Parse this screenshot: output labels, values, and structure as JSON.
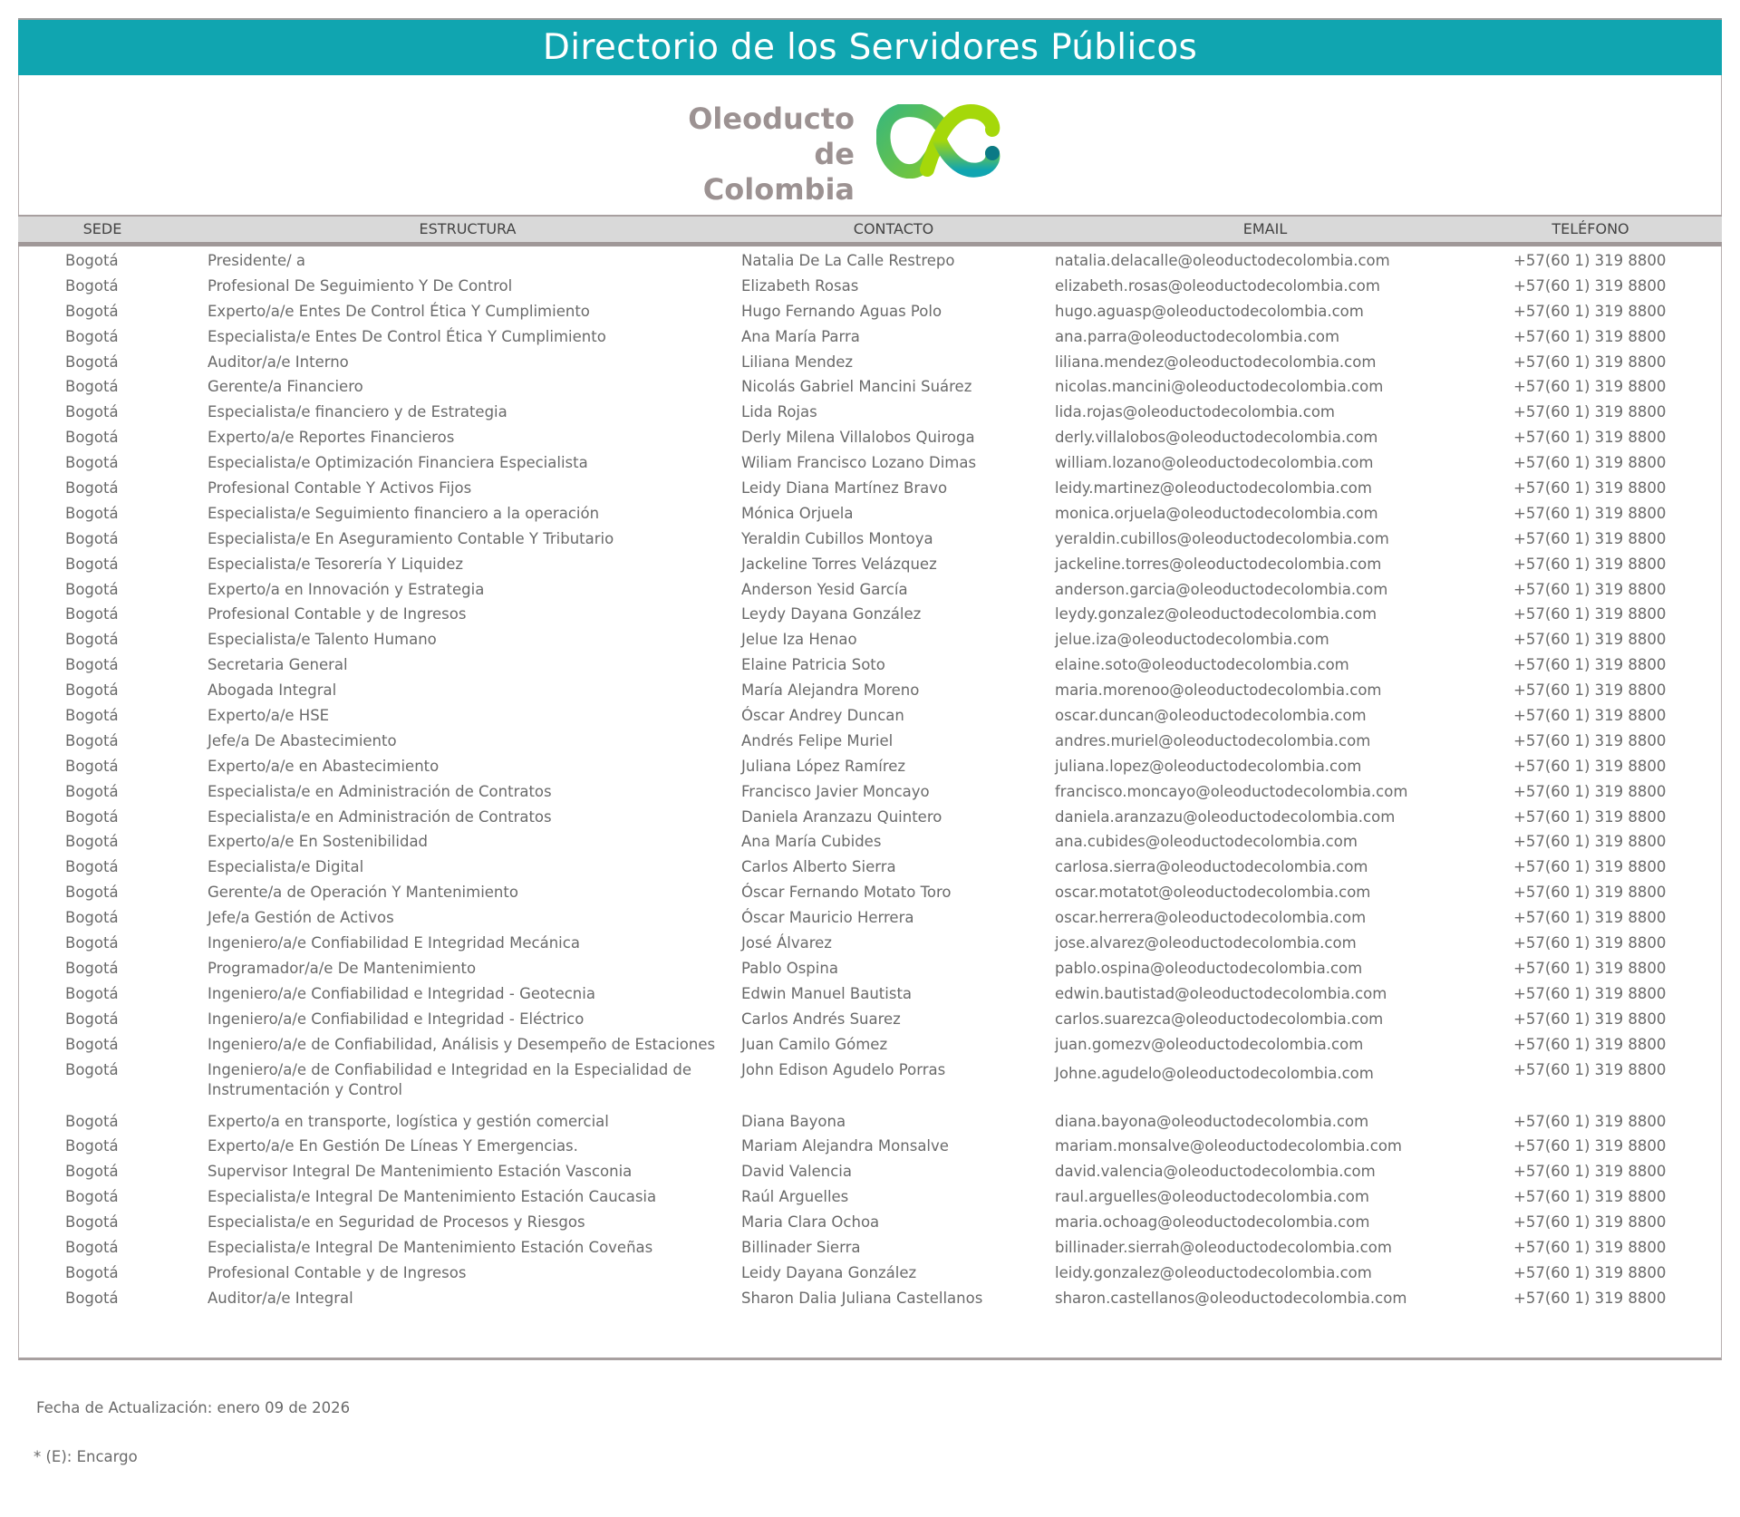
{
  "title": "Directorio de los Servidores Públicos",
  "logo": {
    "line1": "Oleoducto",
    "line2": "de Colombia",
    "colors": [
      "#3cb878",
      "#a5d80a",
      "#10a5b0",
      "#0b7a86"
    ]
  },
  "colors": {
    "title_bar": "#10a5b0",
    "header_bg": "#d9d9d9",
    "text": "#6a6a6a"
  },
  "headers": {
    "sede": "SEDE",
    "estructura": "ESTRUCTURA",
    "contacto": "CONTACTO",
    "email": "EMAIL",
    "telefono": "TELÉFONO"
  },
  "rows": [
    {
      "sede": "Bogotá",
      "estructura": "Presidente/ a",
      "contacto": "Natalia De La Calle Restrepo",
      "email": "natalia.delacalle@oleoductodecolombia.com",
      "telefono": "+57(60 1) 319 8800"
    },
    {
      "sede": "Bogotá",
      "estructura": "Profesional De Seguimiento Y De Control",
      "contacto": "Elizabeth Rosas",
      "email": "elizabeth.rosas@oleoductodecolombia.com",
      "telefono": "+57(60 1) 319 8800"
    },
    {
      "sede": "Bogotá",
      "estructura": "Experto/a/e  Entes De Control Ética Y Cumplimiento",
      "contacto": "Hugo Fernando Aguas Polo",
      "email": "hugo.aguasp@oleoductodecolombia.com",
      "telefono": "+57(60 1) 319 8800"
    },
    {
      "sede": "Bogotá",
      "estructura": "Especialista/e Entes De Control Ética Y Cumplimiento",
      "contacto": "Ana María Parra",
      "email": "ana.parra@oleoductodecolombia.com",
      "telefono": "+57(60 1) 319 8800"
    },
    {
      "sede": "Bogotá",
      "estructura": "Auditor/a/e Interno",
      "contacto": "Liliana Mendez",
      "email": "liliana.mendez@oleoductodecolombia.com",
      "telefono": "+57(60 1) 319 8800"
    },
    {
      "sede": "Bogotá",
      "estructura": "Gerente/a Financiero",
      "contacto": "Nicolás Gabriel Mancini Suárez",
      "email": "nicolas.mancini@oleoductodecolombia.com",
      "telefono": "+57(60 1) 319 8800"
    },
    {
      "sede": "Bogotá",
      "estructura": "Especialista/e financiero y de Estrategia",
      "contacto": "Lida Rojas",
      "email": "lida.rojas@oleoductodecolombia.com",
      "telefono": "+57(60 1) 319 8800"
    },
    {
      "sede": "Bogotá",
      "estructura": "Experto/a/e Reportes Financieros",
      "contacto": "Derly Milena Villalobos Quiroga",
      "email": "derly.villalobos@oleoductodecolombia.com",
      "telefono": "+57(60 1) 319 8800"
    },
    {
      "sede": "Bogotá",
      "estructura": "Especialista/e Optimización Financiera Especialista",
      "contacto": "Wiliam Francisco Lozano Dimas",
      "email": "william.lozano@oleoductodecolombia.com",
      "telefono": "+57(60 1) 319 8800"
    },
    {
      "sede": "Bogotá",
      "estructura": "Profesional Contable Y Activos Fijos",
      "contacto": "Leidy Diana Martínez Bravo",
      "email": "leidy.martinez@oleoductodecolombia.com",
      "telefono": "+57(60 1) 319 8800"
    },
    {
      "sede": "Bogotá",
      "estructura": "Especialista/e Seguimiento financiero a la operación",
      "contacto": "Mónica Orjuela",
      "email": "monica.orjuela@oleoductodecolombia.com",
      "telefono": "+57(60 1) 319 8800"
    },
    {
      "sede": "Bogotá",
      "estructura": "Especialista/e  En Aseguramiento Contable Y Tributario",
      "contacto": "Yeraldin Cubillos Montoya",
      "email": "yeraldin.cubillos@oleoductodecolombia.com",
      "telefono": "+57(60 1) 319 8800"
    },
    {
      "sede": "Bogotá",
      "estructura": "Especialista/e Tesorería Y Liquidez",
      "contacto": "Jackeline Torres Velázquez",
      "email": "jackeline.torres@oleoductodecolombia.com",
      "telefono": "+57(60 1) 319 8800"
    },
    {
      "sede": "Bogotá",
      "estructura": "Experto/a en Innovación y Estrategia",
      "contacto": "Anderson Yesid García",
      "email": "anderson.garcia@oleoductodecolombia.com",
      "telefono": "+57(60 1) 319 8800"
    },
    {
      "sede": "Bogotá",
      "estructura": "Profesional Contable y de Ingresos",
      "contacto": "Leydy Dayana González",
      "email": "leydy.gonzalez@oleoductodecolombia.com",
      "telefono": "+57(60 1) 319 8800"
    },
    {
      "sede": "Bogotá",
      "estructura": "Especialista/e Talento Humano",
      "contacto": "Jelue Iza Henao",
      "email": "jelue.iza@oleoductodecolombia.com",
      "telefono": "+57(60 1) 319 8800"
    },
    {
      "sede": "Bogotá",
      "estructura": "Secretaria General",
      "contacto": "Elaine Patricia Soto",
      "email": "elaine.soto@oleoductodecolombia.com",
      "telefono": "+57(60 1) 319 8800"
    },
    {
      "sede": "Bogotá",
      "estructura": "Abogada Integral",
      "contacto": "María Alejandra Moreno",
      "email": "maria.morenoo@oleoductodecolombia.com",
      "telefono": "+57(60 1) 319 8800"
    },
    {
      "sede": "Bogotá",
      "estructura": "Experto/a/e HSE",
      "contacto": "Óscar Andrey Duncan",
      "email": "oscar.duncan@oleoductodecolombia.com",
      "telefono": "+57(60 1) 319 8800"
    },
    {
      "sede": "Bogotá",
      "estructura": "Jefe/a De Abastecimiento",
      "contacto": "Andrés Felipe Muriel",
      "email": "andres.muriel@oleoductodecolombia.com",
      "telefono": "+57(60 1) 319 8800"
    },
    {
      "sede": "Bogotá",
      "estructura": "Experto/a/e en Abastecimiento",
      "contacto": "Juliana López Ramírez",
      "email": "juliana.lopez@oleoductodecolombia.com",
      "telefono": "+57(60 1) 319 8800"
    },
    {
      "sede": "Bogotá",
      "estructura": "Especialista/e en Administración de Contratos",
      "contacto": "Francisco Javier Moncayo",
      "email": "francisco.moncayo@oleoductodecolombia.com",
      "telefono": "+57(60 1) 319 8800"
    },
    {
      "sede": "Bogotá",
      "estructura": "Especialista/e en Administración de Contratos",
      "contacto": "Daniela Aranzazu Quintero",
      "email": "daniela.aranzazu@oleoductodecolombia.com",
      "telefono": "+57(60 1) 319 8800"
    },
    {
      "sede": "Bogotá",
      "estructura": "Experto/a/e En Sostenibilidad",
      "contacto": "Ana María Cubides",
      "email": "ana.cubides@oleoductodecolombia.com",
      "telefono": "+57(60 1) 319 8800"
    },
    {
      "sede": "Bogotá",
      "estructura": "Especialista/e Digital",
      "contacto": "Carlos Alberto Sierra",
      "email": "carlosa.sierra@oleoductodecolombia.com",
      "telefono": "+57(60 1) 319 8800"
    },
    {
      "sede": "Bogotá",
      "estructura": "Gerente/a de Operación Y Mantenimiento",
      "contacto": "Óscar Fernando Motato Toro",
      "email": "oscar.motatot@oleoductodecolombia.com",
      "telefono": "+57(60 1) 319 8800"
    },
    {
      "sede": "Bogotá",
      "estructura": "Jefe/a  Gestión de Activos",
      "contacto": "Óscar Mauricio Herrera",
      "email": "oscar.herrera@oleoductodecolombia.com",
      "telefono": "+57(60 1) 319 8800"
    },
    {
      "sede": "Bogotá",
      "estructura": "Ingeniero/a/e Confiabilidad E Integridad Mecánica",
      "contacto": "José Álvarez",
      "email": "jose.alvarez@oleoductodecolombia.com",
      "telefono": "+57(60 1) 319 8800"
    },
    {
      "sede": "Bogotá",
      "estructura": "Programador/a/e De Mantenimiento",
      "contacto": "Pablo Ospina",
      "email": "pablo.ospina@oleoductodecolombia.com",
      "telefono": "+57(60 1) 319 8800"
    },
    {
      "sede": "Bogotá",
      "estructura": "Ingeniero/a/e Confiabilidad e  Integridad - Geotecnia",
      "contacto": "Edwin Manuel Bautista",
      "email": "edwin.bautistad@oleoductodecolombia.com",
      "telefono": "+57(60 1) 319 8800"
    },
    {
      "sede": "Bogotá",
      "estructura": "Ingeniero/a/e Confiabilidad e  Integridad - Eléctrico",
      "contacto": "Carlos Andrés Suarez",
      "email": "carlos.suarezca@oleoductodecolombia.com",
      "telefono": "+57(60 1) 319 8800"
    },
    {
      "sede": "Bogotá",
      "estructura": "Ingeniero/a/e de Confiabilidad, Análisis y Desempeño de Estaciones",
      "contacto": "Juan Camilo Gómez",
      "email": "juan.gomezv@oleoductodecolombia.com",
      "telefono": "+57(60 1) 319 8800"
    },
    {
      "sede": "Bogotá",
      "estructura": "Ingeniero/a/e de Confiabilidad e Integridad en la Especialidad de Instrumentación y Control",
      "contacto": "John Edison Agudelo Porras",
      "email": "Johne.agudelo@oleoductodecolombia.com",
      "telefono": "+57(60 1) 319 8800"
    },
    {
      "sede": "Bogotá",
      "estructura": "Experto/a en transporte, logística y gestión comercial",
      "contacto": "Diana Bayona",
      "email": "diana.bayona@oleoductodecolombia.com",
      "telefono": "+57(60 1) 319 8800"
    },
    {
      "sede": "Bogotá",
      "estructura": "Experto/a/e En Gestión De Líneas Y Emergencias.",
      "contacto": "Mariam Alejandra Monsalve",
      "email": "mariam.monsalve@oleoductodecolombia.com",
      "telefono": "+57(60 1) 319 8800"
    },
    {
      "sede": "Bogotá",
      "estructura": "Supervisor Integral De Mantenimiento  Estación  Vasconia",
      "contacto": "David Valencia",
      "email": "david.valencia@oleoductodecolombia.com",
      "telefono": "+57(60 1) 319 8800"
    },
    {
      "sede": "Bogotá",
      "estructura": "Especialista/e Integral De Mantenimiento Estación Caucasia",
      "contacto": "Raúl Arguelles",
      "email": "raul.arguelles@oleoductodecolombia.com",
      "telefono": "+57(60 1) 319 8800"
    },
    {
      "sede": "Bogotá",
      "estructura": "Especialista/e en Seguridad de Procesos y Riesgos",
      "contacto": "Maria Clara Ochoa",
      "email": "maria.ochoag@oleoductodecolombia.com",
      "telefono": "+57(60 1) 319 8800"
    },
    {
      "sede": "Bogotá",
      "estructura": "Especialista/e Integral De Mantenimiento Estación Coveñas",
      "contacto": "Billinader Sierra",
      "email": "billinader.sierrah@oleoductodecolombia.com",
      "telefono": "+57(60 1) 319 8800"
    },
    {
      "sede": "Bogotá",
      "estructura": "Profesional Contable y de Ingresos",
      "contacto": "Leidy Dayana González",
      "email": "leidy.gonzalez@oleoductodecolombia.com",
      "telefono": "+57(60 1) 319 8800"
    },
    {
      "sede": "Bogotá",
      "estructura": "Auditor/a/e Integral",
      "contacto": "Sharon Dalia Juliana Castellanos",
      "email": "sharon.castellanos@oleoductodecolombia.com",
      "telefono": "+57(60 1) 319 8800"
    }
  ],
  "footer": {
    "updated": "Fecha de Actualización: enero 09 de 2026",
    "note": "* (E): Encargo"
  }
}
